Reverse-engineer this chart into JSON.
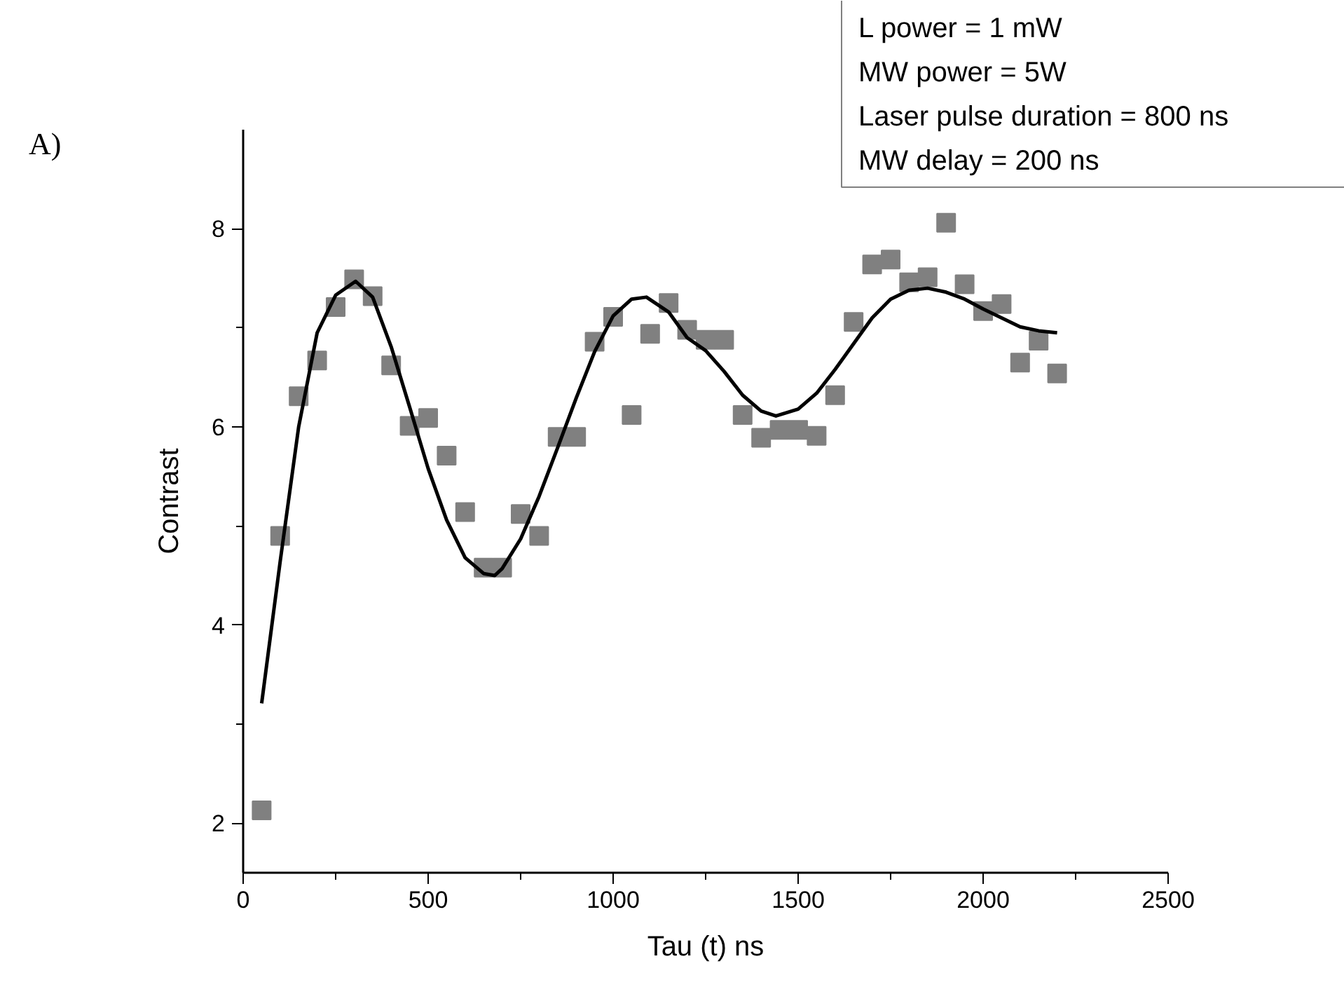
{
  "chart_data": {
    "type": "scatter",
    "title": "A)",
    "xlabel": "Tau (t) ns",
    "ylabel": "Contrast",
    "xlim": [
      0,
      2500
    ],
    "ylim": [
      1.5,
      9
    ],
    "xticks": [
      0,
      500,
      1000,
      1500,
      2000,
      2500
    ],
    "yticks": [
      2,
      4,
      6,
      8
    ],
    "grid": false,
    "annotations": [
      "L power = 1 mW",
      "MW power = 5W",
      "Laser pulse duration = 800 ns",
      "MW  delay = 200 ns"
    ],
    "series": [
      {
        "marker": "square",
        "color": "#808080",
        "x": [
          50,
          100,
          150,
          200,
          250,
          300,
          350,
          400,
          450,
          500,
          550,
          600,
          650,
          700,
          750,
          800,
          850,
          900,
          950,
          1000,
          1050,
          1100,
          1150,
          1200,
          1250,
          1300,
          1350,
          1400,
          1450,
          1500,
          1550,
          1600,
          1650,
          1700,
          1750,
          1800,
          1850,
          1900,
          1950,
          2000,
          2050,
          2100,
          2150,
          2200
        ],
        "values": [
          2.13,
          4.9,
          6.31,
          6.67,
          7.21,
          7.49,
          7.32,
          6.62,
          6.01,
          6.09,
          5.71,
          5.14,
          4.58,
          4.58,
          5.12,
          4.9,
          5.9,
          5.9,
          6.86,
          7.11,
          6.12,
          6.94,
          7.25,
          6.98,
          6.88,
          6.88,
          6.12,
          5.89,
          5.97,
          5.97,
          5.91,
          6.32,
          7.06,
          7.64,
          7.69,
          7.46,
          7.51,
          8.06,
          7.44,
          7.17,
          7.24,
          6.65,
          6.87,
          6.54
        ]
      },
      {
        "type": "line",
        "color": "#000000",
        "x": [
          50,
          100,
          150,
          200,
          250,
          304,
          350,
          400,
          450,
          500,
          550,
          600,
          650,
          680,
          700,
          750,
          800,
          850,
          900,
          950,
          1000,
          1050,
          1090,
          1150,
          1200,
          1250,
          1300,
          1350,
          1400,
          1440,
          1500,
          1550,
          1600,
          1650,
          1700,
          1750,
          1800,
          1850,
          1900,
          1950,
          2000,
          2050,
          2100,
          2150,
          2200
        ],
        "values": [
          3.21,
          4.64,
          6.0,
          6.95,
          7.33,
          7.47,
          7.31,
          6.81,
          6.2,
          5.58,
          5.06,
          4.68,
          4.52,
          4.5,
          4.57,
          4.87,
          5.3,
          5.79,
          6.29,
          6.76,
          7.12,
          7.29,
          7.31,
          7.16,
          6.9,
          6.77,
          6.56,
          6.32,
          6.16,
          6.11,
          6.18,
          6.34,
          6.58,
          6.84,
          7.1,
          7.29,
          7.38,
          7.4,
          7.36,
          7.29,
          7.19,
          7.1,
          7.01,
          6.97,
          6.95
        ]
      }
    ]
  }
}
